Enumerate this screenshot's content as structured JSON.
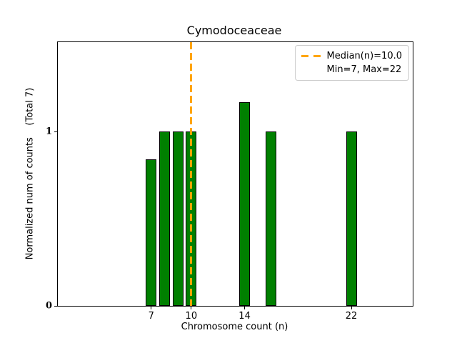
{
  "chart_data": {
    "type": "bar",
    "title": "Cymodoceaceae",
    "xlabel": "Chromosome count (n)",
    "ylabel": "Normalized num of counts    (Total 7)",
    "x": [
      7,
      8,
      9,
      10,
      14,
      16,
      22
    ],
    "values": [
      0.84,
      1.0,
      1.0,
      1.0,
      1.17,
      1.0,
      1.0
    ],
    "total_count": 7,
    "bar_width_units": 0.8,
    "xlim": [
      0,
      26.6
    ],
    "ylim": [
      0,
      1.515
    ],
    "xticks": [
      7,
      10,
      14,
      22
    ],
    "yticks": [
      0,
      1
    ],
    "median_value": 10.0,
    "min_value": 7,
    "max_value": 22,
    "grid": false,
    "colors": {
      "bar_fill": "#008000",
      "bar_edge": "#000000",
      "median_line": "#FFA500",
      "legend_border": "#cccccc",
      "text": "#000000"
    },
    "legend": {
      "position": "upper right",
      "entries": [
        {
          "label": "Median(n)=10.0",
          "marker": "orange-dashed-line"
        },
        {
          "label": "Min=7, Max=22",
          "marker": "none"
        }
      ]
    }
  }
}
